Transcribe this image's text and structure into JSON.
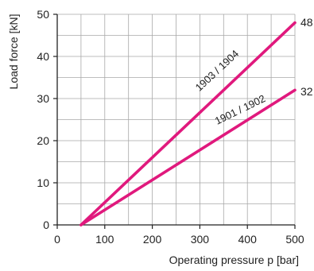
{
  "chart_data": {
    "type": "line",
    "xlabel": "Operating pressure p [bar]",
    "ylabel": "Load force [kN]",
    "xlim": [
      0,
      500
    ],
    "ylim": [
      0,
      50
    ],
    "xticks": [
      0,
      100,
      200,
      300,
      400,
      500
    ],
    "yticks": [
      0,
      10,
      20,
      30,
      40,
      50
    ],
    "minor_grid_x_step": 50,
    "minor_grid_y_step": 5,
    "grid": true,
    "series": [
      {
        "name": "1903 / 1904",
        "color": "#e0197d",
        "points": [
          [
            50,
            0
          ],
          [
            500,
            48
          ]
        ],
        "end_label": "48"
      },
      {
        "name": "1901 / 1902",
        "color": "#e0197d",
        "points": [
          [
            50,
            0
          ],
          [
            500,
            32
          ]
        ],
        "end_label": "32"
      }
    ]
  }
}
